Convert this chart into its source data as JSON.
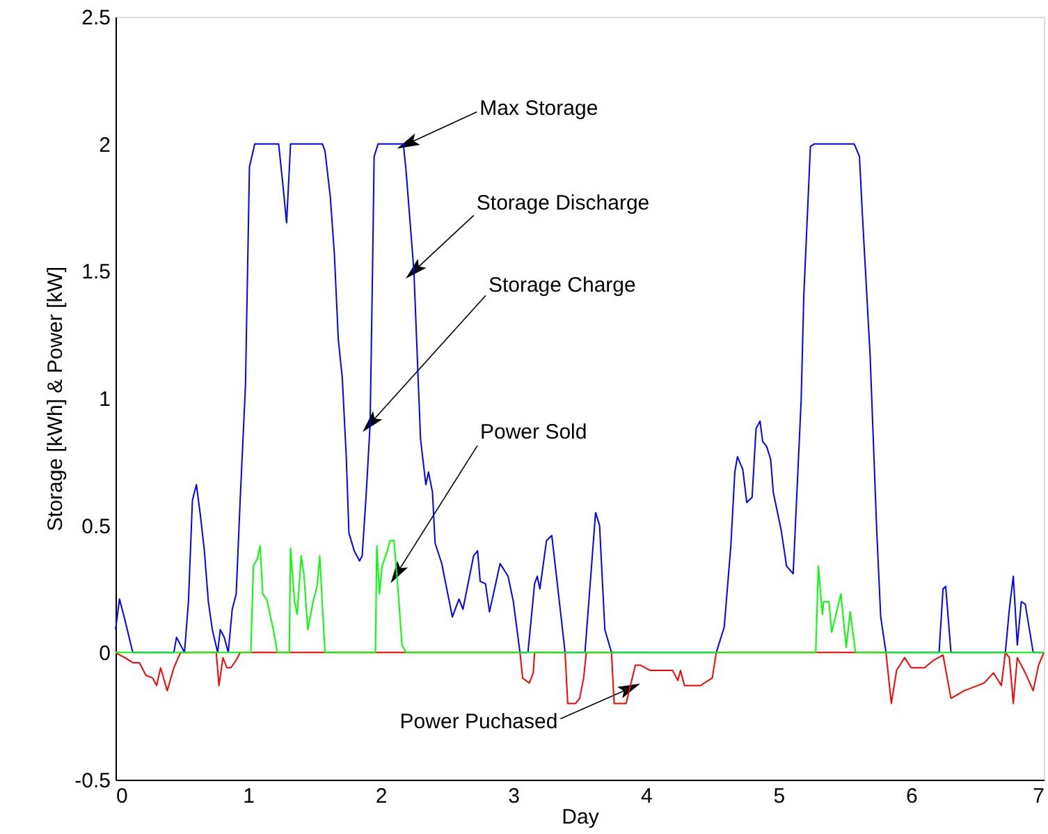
{
  "chart_data": {
    "type": "line",
    "xlabel": "Day",
    "ylabel": "Storage [kWh]  &  Power [kW]",
    "xlim": [
      0,
      7
    ],
    "xticks": [
      0,
      1,
      2,
      3,
      4,
      5,
      6,
      7
    ],
    "ylim": [
      -0.5,
      2.5
    ],
    "yticks": [
      -0.5,
      0,
      0.5,
      1,
      1.5,
      2,
      2.5
    ],
    "marker": "none",
    "line_style": "solid",
    "series": [
      {
        "color": "#0000ff",
        "x": [
          0,
          0.03,
          0.07,
          0.13,
          0.44,
          0.46,
          0.49,
          0.52,
          0.55,
          0.58,
          0.61,
          0.64,
          0.67,
          0.7,
          0.73,
          0.77,
          0.79,
          0.82,
          0.85,
          0.88,
          0.91,
          0.94,
          0.98,
          1.01,
          1.05,
          1.23,
          1.26,
          1.29,
          1.32,
          1.56,
          1.58,
          1.62,
          1.65,
          1.68,
          1.71,
          1.74,
          1.76,
          1.8,
          1.84,
          1.86,
          1.89,
          1.92,
          1.94,
          1.95,
          1.98,
          2.17,
          2.19,
          2.25,
          2.3,
          2.34,
          2.36,
          2.39,
          2.41,
          2.46,
          2.54,
          2.59,
          2.62,
          2.7,
          2.73,
          2.75,
          2.79,
          2.82,
          2.9,
          2.96,
          3.0,
          3.05,
          3.11,
          3.16,
          3.18,
          3.2,
          3.25,
          3.29,
          3.36,
          3.39,
          3.54,
          3.62,
          3.65,
          3.69,
          3.74,
          4.53,
          4.59,
          4.64,
          4.67,
          4.69,
          4.73,
          4.76,
          4.8,
          4.83,
          4.86,
          4.88,
          4.91,
          4.94,
          4.96,
          5.02,
          5.06,
          5.11,
          5.17,
          5.19,
          5.24,
          5.27,
          5.57,
          5.61,
          5.63,
          5.69,
          5.74,
          5.77,
          5.81,
          6.21,
          6.24,
          6.26,
          6.3,
          6.71,
          6.74,
          6.77,
          6.8,
          6.83,
          6.86,
          6.92,
          7
        ],
        "values": [
          0.09,
          0.21,
          0.13,
          0,
          0,
          0.06,
          0.03,
          0,
          0.2,
          0.6,
          0.66,
          0.54,
          0.4,
          0.2,
          0.09,
          0,
          0.09,
          0.06,
          0,
          0.17,
          0.23,
          0.6,
          1.05,
          1.91,
          2,
          2,
          1.85,
          1.69,
          2,
          2,
          1.97,
          1.79,
          1.57,
          1.23,
          1.08,
          0.77,
          0.47,
          0.4,
          0.36,
          0.38,
          0.62,
          0.9,
          1.57,
          1.95,
          2,
          2,
          1.9,
          1.5,
          0.84,
          0.66,
          0.71,
          0.63,
          0.43,
          0.35,
          0.14,
          0.21,
          0.17,
          0.38,
          0.4,
          0.28,
          0.27,
          0.16,
          0.35,
          0.3,
          0.2,
          0,
          0,
          0.27,
          0.3,
          0.25,
          0.44,
          0.46,
          0.14,
          0,
          0,
          0.55,
          0.5,
          0.09,
          0,
          0,
          0.1,
          0.42,
          0.71,
          0.77,
          0.72,
          0.59,
          0.61,
          0.88,
          0.91,
          0.83,
          0.81,
          0.76,
          0.63,
          0.48,
          0.34,
          0.31,
          0.99,
          1.4,
          1.99,
          2,
          2,
          1.95,
          1.74,
          1.17,
          0.48,
          0.14,
          0,
          0,
          0.25,
          0.26,
          0,
          0,
          0.17,
          0.3,
          0.03,
          0.2,
          0.19,
          0,
          0
        ]
      },
      {
        "color": "#ff0000",
        "x": [
          0,
          0.07,
          0.13,
          0.18,
          0.23,
          0.28,
          0.31,
          0.34,
          0.39,
          0.44,
          0.49,
          0.76,
          0.78,
          0.81,
          0.84,
          0.87,
          0.91,
          0.94,
          3.05,
          3.07,
          3.12,
          3.15,
          3.16,
          3.39,
          3.41,
          3.47,
          3.5,
          3.53,
          3.55,
          3.74,
          3.76,
          3.85,
          3.92,
          3.96,
          4.03,
          4.2,
          4.24,
          4.26,
          4.29,
          4.41,
          4.5,
          4.53,
          5.81,
          5.85,
          5.89,
          5.95,
          6.0,
          6.1,
          6.17,
          6.24,
          6.3,
          6.4,
          6.55,
          6.62,
          6.68,
          6.71,
          6.74,
          6.77,
          6.8,
          6.86,
          6.92,
          6.96,
          7
        ],
        "values": [
          0,
          -0.02,
          -0.04,
          -0.04,
          -0.09,
          -0.1,
          -0.13,
          -0.06,
          -0.15,
          -0.06,
          0,
          0,
          -0.13,
          -0.02,
          -0.06,
          -0.06,
          -0.03,
          0,
          0,
          -0.1,
          -0.12,
          -0.08,
          0,
          0,
          -0.2,
          -0.2,
          -0.18,
          -0.1,
          0,
          0,
          -0.2,
          -0.2,
          -0.05,
          -0.05,
          -0.07,
          -0.07,
          -0.11,
          -0.07,
          -0.13,
          -0.13,
          -0.1,
          0,
          0,
          -0.2,
          -0.07,
          -0.02,
          -0.06,
          -0.06,
          -0.03,
          -0.01,
          -0.18,
          -0.15,
          -0.12,
          -0.08,
          -0.13,
          0,
          -0.02,
          -0.2,
          -0.02,
          -0.08,
          -0.15,
          -0.05,
          0
        ]
      },
      {
        "color": "#00ff00",
        "x": [
          0,
          1.02,
          1.04,
          1.07,
          1.09,
          1.11,
          1.14,
          1.19,
          1.22,
          1.31,
          1.32,
          1.35,
          1.37,
          1.4,
          1.42,
          1.45,
          1.49,
          1.52,
          1.54,
          1.57,
          1.58,
          1.96,
          1.97,
          1.99,
          2.01,
          2.05,
          2.07,
          2.1,
          2.13,
          2.16,
          2.19,
          5.28,
          5.3,
          5.33,
          5.34,
          5.38,
          5.4,
          5.47,
          5.51,
          5.54,
          5.58,
          7
        ],
        "values": [
          0,
          0,
          0.34,
          0.37,
          0.42,
          0.23,
          0.21,
          0.09,
          0,
          0,
          0.41,
          0.2,
          0.15,
          0.38,
          0.31,
          0.09,
          0.2,
          0.26,
          0.38,
          0.09,
          0,
          0,
          0.42,
          0.23,
          0.34,
          0.4,
          0.44,
          0.44,
          0.25,
          0.03,
          0,
          0,
          0.34,
          0.15,
          0.2,
          0.2,
          0.08,
          0.23,
          0.02,
          0.16,
          0,
          0
        ]
      }
    ],
    "annotations": [
      {
        "text": "Max Storage",
        "x": 2.2,
        "y": 2
      },
      {
        "text": "Storage Discharge",
        "x": 2.25,
        "y": 1.5
      },
      {
        "text": "Storage Charge",
        "x": 1.92,
        "y": 0.9
      },
      {
        "text": "Power Sold",
        "x": 2.12,
        "y": 0.31
      },
      {
        "text": "Power Puchased",
        "x": 3.88,
        "y": -0.14
      }
    ]
  }
}
